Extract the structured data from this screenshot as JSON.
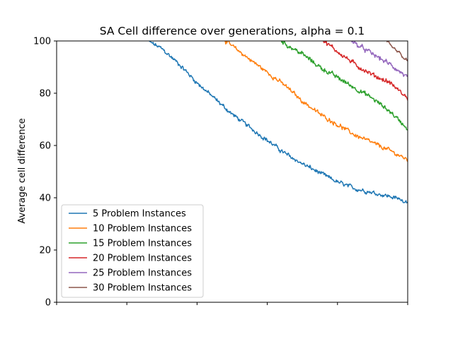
{
  "chart_data": {
    "type": "line",
    "title": "SA Cell difference over generations, alpha = 0.1",
    "xlabel": "",
    "ylabel": "Average cell difference",
    "xlim": [
      0,
      100
    ],
    "ylim": [
      0,
      100
    ],
    "x_tick_labels_visible": false,
    "x_ticks": [
      0,
      20,
      40,
      60,
      80,
      100
    ],
    "y_ticks": [
      0,
      20,
      40,
      60,
      80,
      100
    ],
    "grid": false,
    "legend_position": "lower-left",
    "series": [
      {
        "name": "5 Problem Instances",
        "color": "#1f77b4",
        "x": [
          26,
          30,
          35,
          40,
          45,
          50,
          55,
          60,
          65,
          70,
          75,
          80,
          85,
          90,
          95,
          100
        ],
        "values": [
          100,
          97,
          91,
          84,
          78,
          72,
          67,
          62,
          57,
          53,
          49.5,
          46,
          43.5,
          42,
          40.5,
          38.5
        ],
        "noise": 1.0
      },
      {
        "name": "10 Problem Instances",
        "color": "#ff7f0e",
        "x": [
          48,
          50,
          55,
          60,
          65,
          70,
          75,
          80,
          85,
          90,
          95,
          100
        ],
        "values": [
          100,
          98,
          93,
          88,
          83,
          77,
          72,
          68,
          64,
          61,
          58,
          54.5
        ],
        "noise": 1.0
      },
      {
        "name": "15 Problem Instances",
        "color": "#2ca02c",
        "x": [
          64,
          65,
          70,
          75,
          80,
          85,
          90,
          95,
          100
        ],
        "values": [
          100,
          99,
          95,
          90,
          86,
          82,
          78,
          73,
          66.5
        ],
        "noise": 1.1
      },
      {
        "name": "20 Problem Instances",
        "color": "#d62728",
        "x": [
          76,
          80,
          85,
          90,
          95,
          100
        ],
        "values": [
          100,
          96,
          91,
          87,
          84,
          78
        ],
        "noise": 1.1
      },
      {
        "name": "25 Problem Instances",
        "color": "#9467bd",
        "x": [
          84,
          85,
          90,
          95,
          100
        ],
        "values": [
          100,
          99,
          95,
          91,
          86
        ],
        "noise": 1.1
      },
      {
        "name": "30 Problem Instances",
        "color": "#8c564b",
        "x": [
          94,
          95,
          97.5,
          100
        ],
        "values": [
          100,
          98,
          95.5,
          92
        ],
        "noise": 0.9
      }
    ]
  }
}
